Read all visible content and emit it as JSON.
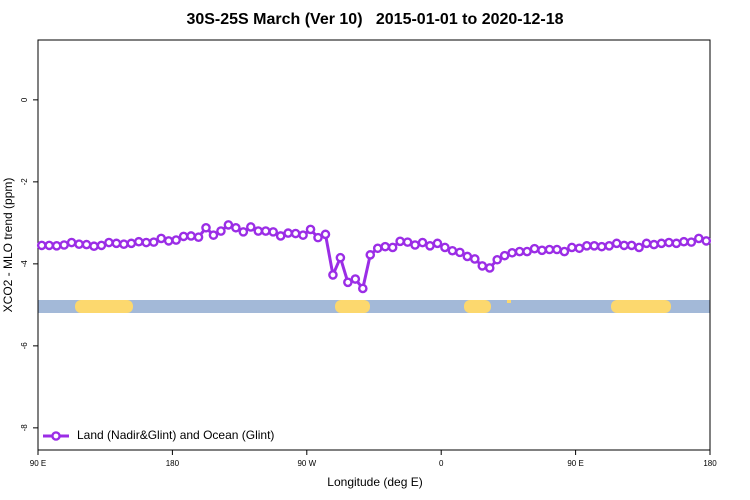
{
  "chart_data": {
    "type": "line",
    "title": "30S-25S March (Ver 10)   2015-01-01 to 2020-12-18",
    "x_label": "Longitude (deg E)",
    "y_label": "XCO2 - MLO trend (ppm)",
    "xlim": [
      90,
      540
    ],
    "xticks": [
      {
        "value": 90,
        "label": "90 E"
      },
      {
        "value": 180,
        "label": "180"
      },
      {
        "value": 270,
        "label": "90 W"
      },
      {
        "value": 360,
        "label": "0"
      },
      {
        "value": 450,
        "label": "90 E"
      },
      {
        "value": 540,
        "label": "180"
      }
    ],
    "ylim": [
      -8.54,
      1.46
    ],
    "yticks": [
      0,
      -2,
      -4,
      -6,
      -8
    ],
    "legend": "bottom-left",
    "x": [
      92.5,
      97.5,
      102.5,
      107.5,
      112.5,
      117.5,
      122.5,
      127.5,
      132.5,
      137.5,
      142.5,
      147.5,
      152.5,
      157.5,
      162.5,
      167.5,
      172.5,
      177.5,
      182.5,
      187.5,
      192.5,
      197.5,
      202.5,
      207.5,
      212.5,
      217.5,
      222.5,
      227.5,
      232.5,
      237.5,
      242.5,
      247.5,
      252.5,
      257.5,
      262.5,
      267.5,
      272.5,
      277.5,
      282.5,
      287.5,
      292.5,
      297.5,
      302.5,
      307.5,
      312.5,
      317.5,
      322.5,
      327.5,
      332.5,
      337.5,
      342.5,
      347.5,
      352.5,
      357.5,
      362.5,
      367.5,
      372.5,
      377.5,
      382.5,
      387.5,
      392.5,
      397.5,
      402.5,
      407.5,
      412.5,
      417.5,
      422.5,
      427.5,
      432.5,
      437.5,
      442.5,
      447.5,
      452.5,
      457.5,
      462.5,
      467.5,
      472.5,
      477.5,
      482.5,
      487.5,
      492.5,
      497.5,
      502.5,
      507.5,
      512.5,
      517.5,
      522.5,
      527.5,
      532.5,
      537.5
    ],
    "series": [
      {
        "name": "Land (Nadir&Glint) and Ocean (Glint)",
        "color": "#9b2de6",
        "values": [
          -3.55,
          -3.55,
          -3.56,
          -3.54,
          -3.48,
          -3.52,
          -3.53,
          -3.57,
          -3.55,
          -3.48,
          -3.5,
          -3.52,
          -3.5,
          -3.46,
          -3.48,
          -3.47,
          -3.38,
          -3.44,
          -3.42,
          -3.33,
          -3.32,
          -3.35,
          -3.12,
          -3.3,
          -3.2,
          -3.05,
          -3.12,
          -3.22,
          -3.1,
          -3.2,
          -3.2,
          -3.22,
          -3.32,
          -3.25,
          -3.26,
          -3.3,
          -3.16,
          -3.36,
          -3.28,
          -4.27,
          -3.85,
          -4.45,
          -4.37,
          -4.6,
          -3.78,
          -3.62,
          -3.58,
          -3.6,
          -3.45,
          -3.47,
          -3.54,
          -3.48,
          -3.56,
          -3.5,
          -3.6,
          -3.68,
          -3.72,
          -3.82,
          -3.88,
          -4.05,
          -4.1,
          -3.9,
          -3.8,
          -3.73,
          -3.7,
          -3.7,
          -3.63,
          -3.67,
          -3.65,
          -3.65,
          -3.7,
          -3.6,
          -3.62,
          -3.56,
          -3.56,
          -3.58,
          -3.56,
          -3.5,
          -3.55,
          -3.55,
          -3.6,
          -3.5,
          -3.53,
          -3.5,
          -3.48,
          -3.5,
          -3.46,
          -3.47,
          -3.38,
          -3.44
        ]
      }
    ]
  }
}
